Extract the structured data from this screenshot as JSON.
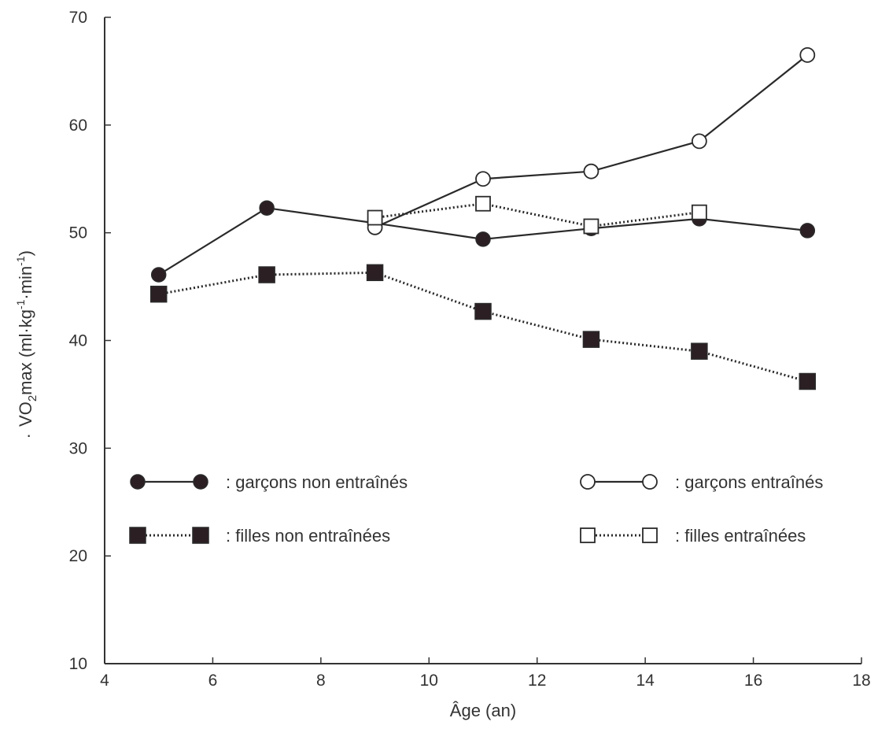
{
  "chart_data": {
    "type": "line",
    "title": "",
    "xlabel": "Âge (an)",
    "ylabel_parts": {
      "v": "V",
      "o": "O",
      "sub": "2",
      "rest": "max (ml·kg",
      "sup1": "-1",
      "mid": "·min",
      "sup2": "-1",
      "close": ")"
    },
    "xlim": [
      4,
      18
    ],
    "ylim": [
      10,
      70
    ],
    "x_ticks": [
      4,
      6,
      8,
      10,
      12,
      14,
      16,
      18
    ],
    "y_ticks": [
      10,
      20,
      30,
      40,
      50,
      60,
      70
    ],
    "grid": false,
    "series": [
      {
        "name": ": garçons non entraînés",
        "marker": "filled-circle",
        "line": "solid",
        "points": [
          [
            5,
            46.1
          ],
          [
            7,
            52.3
          ],
          [
            9,
            50.9
          ],
          [
            11,
            49.4
          ],
          [
            13,
            50.4
          ],
          [
            15,
            51.3
          ],
          [
            17,
            50.2
          ]
        ]
      },
      {
        "name": ": garçons entraînés",
        "marker": "open-circle",
        "line": "solid",
        "points": [
          [
            9,
            50.5
          ],
          [
            11,
            55.0
          ],
          [
            13,
            55.7
          ],
          [
            15,
            58.5
          ],
          [
            17,
            66.5
          ]
        ]
      },
      {
        "name": ": filles non entraînées",
        "marker": "filled-square",
        "line": "dotted",
        "points": [
          [
            5,
            44.3
          ],
          [
            7,
            46.1
          ],
          [
            9,
            46.3
          ],
          [
            11,
            42.7
          ],
          [
            13,
            40.1
          ],
          [
            15,
            39.0
          ],
          [
            17,
            36.2
          ]
        ]
      },
      {
        "name": ": filles entraînées",
        "marker": "open-square",
        "line": "dotted",
        "points": [
          [
            9,
            51.4
          ],
          [
            11,
            52.7
          ],
          [
            13,
            50.6
          ],
          [
            15,
            51.9
          ]
        ]
      }
    ],
    "legend_position": "lower-middle",
    "colors": {
      "line": "#2a2a2a",
      "filled_marker": "#2b1f24",
      "open_marker_fill": "#ffffff"
    }
  }
}
